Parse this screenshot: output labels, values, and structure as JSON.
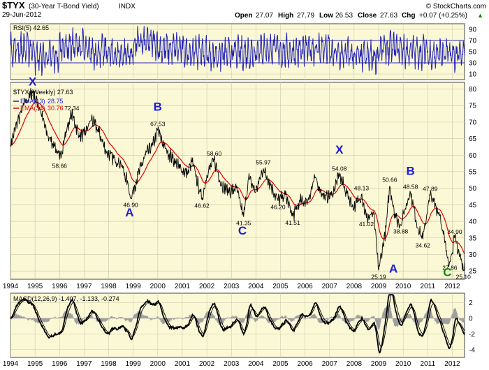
{
  "header": {
    "symbol": "$TYX",
    "name": "(30-Year T-Bond Yield)",
    "exchange": "INDX",
    "date": "29-Jun-2012",
    "copyright": "© StockCharts.com",
    "quote": {
      "open_label": "Open",
      "open": "27.07",
      "high_label": "High",
      "high": "27.79",
      "low_label": "Low",
      "low": "26.53",
      "close_label": "Close",
      "close": "27.63",
      "chg_label": "Chg",
      "chg": "+0.07 (+0.25%)",
      "chg_arrow": "▲"
    }
  },
  "colors": {
    "panel_bg": "#fbf8d5",
    "grid": "#c9c6a8",
    "price": "#000000",
    "ema13": "#1c1cd8",
    "ema34": "#e00000",
    "rsi": "#2424b4",
    "macd": "#000000",
    "signal": "#000000",
    "histogram": "#a0a0a0",
    "wave_blue": "#1b1bd6",
    "wave_green": "#0b8a12"
  },
  "chart_data": [
    {
      "panel": "rsi",
      "type": "line",
      "legend": "RSI(5) 42.65",
      "ylim": [
        0,
        100
      ],
      "y_ticks": [
        10,
        30,
        50,
        70,
        90
      ],
      "overbought": 70,
      "oversold": 30,
      "approx_values_by_year": {
        "1994": 55,
        "1995": 40,
        "1996": 60,
        "1997": 50,
        "1998": 45,
        "1999": 65,
        "2000": 55,
        "2001": 50,
        "2002": 45,
        "2003": 48,
        "2004": 55,
        "2005": 50,
        "2006": 55,
        "2007": 45,
        "2008": 40,
        "2009": 55,
        "2010": 50,
        "2011": 45,
        "2012": 42.65
      }
    },
    {
      "panel": "price",
      "type": "line",
      "title": "$TYX (Weekly) 27.63",
      "x_ticks": [
        "1994",
        "1995",
        "1996",
        "1997",
        "1998",
        "1999",
        "2000",
        "2001",
        "2002",
        "2003",
        "2004",
        "2005",
        "2006",
        "2007",
        "2008",
        "2009",
        "2010",
        "2011",
        "2012"
      ],
      "xlim": [
        1994.0,
        2012.5
      ],
      "y_ticks": [
        25,
        30,
        35,
        40,
        45,
        50,
        55,
        60,
        65,
        70,
        75,
        80
      ],
      "ylim": [
        22.5,
        82
      ],
      "series": [
        {
          "name": "$TYX",
          "current": "27.63",
          "points": [
            [
              1994.0,
              63.0
            ],
            [
              1994.3,
              70.5
            ],
            [
              1994.6,
              76.0
            ],
            [
              1994.9,
              79.0
            ],
            [
              1995.2,
              74.0
            ],
            [
              1995.5,
              66.0
            ],
            [
              1995.8,
              63.0
            ],
            [
              1996.0,
              58.66
            ],
            [
              1996.3,
              68.0
            ],
            [
              1996.5,
              72.34
            ],
            [
              1996.8,
              66.0
            ],
            [
              1997.0,
              66.0
            ],
            [
              1997.3,
              71.0
            ],
            [
              1997.6,
              67.0
            ],
            [
              1997.9,
              61.0
            ],
            [
              1998.2,
              59.0
            ],
            [
              1998.5,
              57.5
            ],
            [
              1998.8,
              51.0
            ],
            [
              1998.9,
              46.9
            ],
            [
              1999.2,
              54.0
            ],
            [
              1999.5,
              60.0
            ],
            [
              1999.8,
              63.0
            ],
            [
              2000.0,
              67.53
            ],
            [
              2000.3,
              62.0
            ],
            [
              2000.6,
              59.0
            ],
            [
              2000.9,
              56.0
            ],
            [
              2001.2,
              54.5
            ],
            [
              2001.4,
              58.0
            ],
            [
              2001.8,
              46.62
            ],
            [
              2002.0,
              54.0
            ],
            [
              2002.3,
              58.6
            ],
            [
              2002.6,
              51.0
            ],
            [
              2002.9,
              49.0
            ],
            [
              2003.2,
              50.0
            ],
            [
              2003.5,
              41.35
            ],
            [
              2003.7,
              53.0
            ],
            [
              2004.0,
              49.0
            ],
            [
              2004.3,
              55.97
            ],
            [
              2004.6,
              51.0
            ],
            [
              2004.9,
              46.2
            ],
            [
              2005.2,
              48.0
            ],
            [
              2005.5,
              41.51
            ],
            [
              2005.8,
              46.0
            ],
            [
              2006.1,
              46.0
            ],
            [
              2006.4,
              53.0
            ],
            [
              2006.8,
              47.0
            ],
            [
              2007.1,
              48.0
            ],
            [
              2007.4,
              54.08
            ],
            [
              2007.7,
              48.5
            ],
            [
              2008.0,
              44.0
            ],
            [
              2008.3,
              48.13
            ],
            [
              2008.5,
              41.02
            ],
            [
              2008.8,
              42.0
            ],
            [
              2009.0,
              25.19
            ],
            [
              2009.3,
              38.0
            ],
            [
              2009.45,
              50.66
            ],
            [
              2009.7,
              41.0
            ],
            [
              2009.9,
              38.88
            ],
            [
              2010.2,
              47.0
            ],
            [
              2010.3,
              48.58
            ],
            [
              2010.6,
              38.0
            ],
            [
              2010.8,
              34.62
            ],
            [
              2011.0,
              44.0
            ],
            [
              2011.1,
              47.89
            ],
            [
              2011.5,
              42.0
            ],
            [
              2011.8,
              29.0
            ],
            [
              2011.9,
              27.86
            ],
            [
              2012.1,
              34.9
            ],
            [
              2012.35,
              28.5
            ],
            [
              2012.45,
              25.1
            ],
            [
              2012.5,
              27.63
            ]
          ]
        },
        {
          "name": "EMA(13)",
          "current": "28.75"
        },
        {
          "name": "EMA(34)",
          "current": "30.76"
        }
      ],
      "data_labels": [
        {
          "x": 1996.5,
          "y": 72.34,
          "text": "72.34",
          "pos": "above"
        },
        {
          "x": 1996.0,
          "y": 58.66,
          "text": "58.66",
          "pos": "below"
        },
        {
          "x": 1998.9,
          "y": 46.9,
          "text": "46.90",
          "pos": "below"
        },
        {
          "x": 2000.0,
          "y": 67.53,
          "text": "67.53",
          "pos": "above"
        },
        {
          "x": 2001.8,
          "y": 46.62,
          "text": "46.62",
          "pos": "below"
        },
        {
          "x": 2002.3,
          "y": 58.6,
          "text": "58.60",
          "pos": "above"
        },
        {
          "x": 2003.5,
          "y": 41.35,
          "text": "41.35",
          "pos": "below"
        },
        {
          "x": 2004.3,
          "y": 55.97,
          "text": "55.97",
          "pos": "above"
        },
        {
          "x": 2004.9,
          "y": 46.2,
          "text": "46.20",
          "pos": "below"
        },
        {
          "x": 2005.5,
          "y": 41.51,
          "text": "41.51",
          "pos": "below"
        },
        {
          "x": 2007.4,
          "y": 54.08,
          "text": "54.08",
          "pos": "above"
        },
        {
          "x": 2008.3,
          "y": 48.13,
          "text": "48.13",
          "pos": "above"
        },
        {
          "x": 2008.5,
          "y": 41.02,
          "text": "41.02",
          "pos": "below"
        },
        {
          "x": 2009.0,
          "y": 25.19,
          "text": "25.19",
          "pos": "below"
        },
        {
          "x": 2009.45,
          "y": 50.66,
          "text": "50.66",
          "pos": "above"
        },
        {
          "x": 2009.9,
          "y": 38.88,
          "text": "38.88",
          "pos": "below"
        },
        {
          "x": 2010.3,
          "y": 48.58,
          "text": "48.58",
          "pos": "above"
        },
        {
          "x": 2010.8,
          "y": 34.62,
          "text": "34.62",
          "pos": "below"
        },
        {
          "x": 2011.1,
          "y": 47.89,
          "text": "47.89",
          "pos": "above"
        },
        {
          "x": 2011.9,
          "y": 27.86,
          "text": "27.86",
          "pos": "below"
        },
        {
          "x": 2012.1,
          "y": 34.9,
          "text": "34.90",
          "pos": "above"
        },
        {
          "x": 2012.45,
          "y": 25.1,
          "text": "25.10",
          "pos": "below"
        }
      ],
      "wave_labels": [
        {
          "text": "X",
          "x": 1994.9,
          "y": 81,
          "color": "blue"
        },
        {
          "text": "A",
          "x": 1998.85,
          "y": 41.5,
          "color": "blue"
        },
        {
          "text": "B",
          "x": 2000.0,
          "y": 73.5,
          "color": "blue"
        },
        {
          "text": "C",
          "x": 2003.45,
          "y": 36.0,
          "color": "blue"
        },
        {
          "text": "X",
          "x": 2007.4,
          "y": 60.5,
          "color": "blue"
        },
        {
          "text": "A",
          "x": 2009.6,
          "y": 24.5,
          "color": "blue"
        },
        {
          "text": "B",
          "x": 2010.3,
          "y": 54.0,
          "color": "blue"
        },
        {
          "text": "C",
          "x": 2011.8,
          "y": 23.5,
          "color": "green"
        }
      ]
    },
    {
      "panel": "macd",
      "type": "line",
      "legend": "MACD(12,26,9) -1.407, -1.133, -0.274",
      "ylim": [
        -5,
        3.2
      ],
      "y_ticks": [
        -4,
        -2,
        0,
        2
      ],
      "series": [
        {
          "name": "MACD",
          "value": -1.407
        },
        {
          "name": "Signal",
          "value": -1.133
        },
        {
          "name": "Histogram",
          "value": -0.274
        }
      ]
    }
  ]
}
